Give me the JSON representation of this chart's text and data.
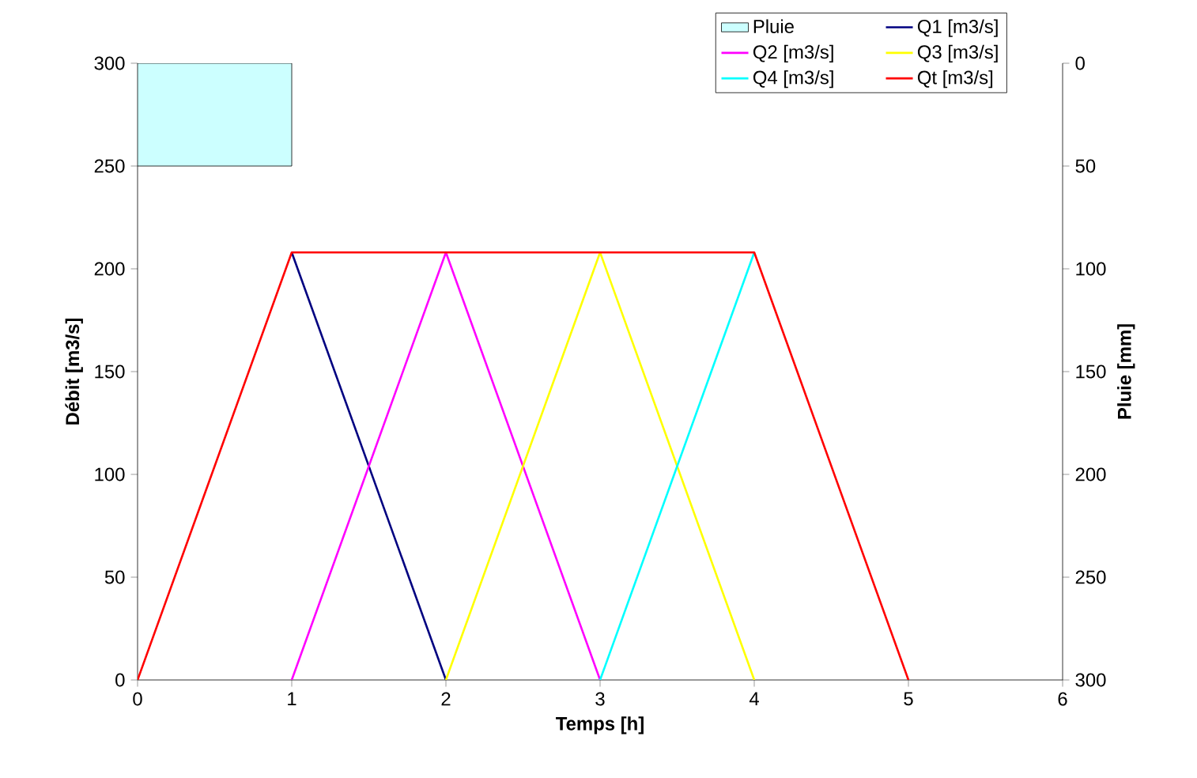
{
  "chart_data": {
    "type": "line",
    "xlabel": "Temps [h]",
    "ylabel": "Débit [m3/s]",
    "y2label": "Pluie [mm]",
    "xlim": [
      0,
      6
    ],
    "xticks": [
      0,
      1,
      2,
      3,
      4,
      5,
      6
    ],
    "ylim": [
      0,
      300
    ],
    "yticks": [
      0,
      50,
      100,
      150,
      200,
      250,
      300
    ],
    "y2lim": [
      300,
      0
    ],
    "y2ticks": [
      0,
      50,
      100,
      150,
      200,
      250,
      300
    ],
    "legend": "top right",
    "grid": false,
    "marker": "none",
    "line_style": "solid",
    "series": [
      {
        "name": "Pluie",
        "type": "bar",
        "axis": "y2",
        "color": "#ccffff",
        "x": [
          0.5
        ],
        "values": [
          50
        ]
      },
      {
        "name": "Q1 [m3/s]",
        "color": "#000080",
        "x": [
          1,
          2
        ],
        "values": [
          208,
          0
        ]
      },
      {
        "name": "Q2 [m3/s]",
        "color": "#ff00ff",
        "x": [
          1,
          2,
          3
        ],
        "values": [
          0,
          208,
          0
        ]
      },
      {
        "name": "Q3 [m3/s]",
        "color": "#ffff00",
        "x": [
          2,
          3,
          4
        ],
        "values": [
          0,
          208,
          0
        ]
      },
      {
        "name": "Q4 [m3/s]",
        "color": "#00ffff",
        "x": [
          3,
          4
        ],
        "values": [
          0,
          208
        ]
      },
      {
        "name": "Qt [m3/s]",
        "color": "#ff0000",
        "x": [
          0,
          1,
          4,
          5
        ],
        "values": [
          0,
          208,
          208,
          0
        ]
      }
    ]
  }
}
